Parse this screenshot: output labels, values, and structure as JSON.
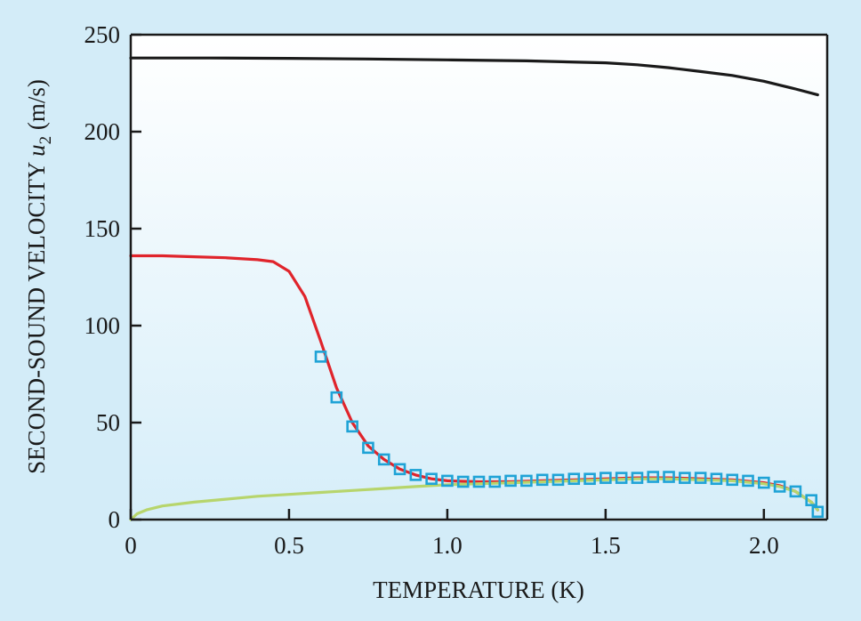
{
  "colors": {
    "background": "#d3ecf8",
    "plot_top": "#ffffff",
    "plot_bottom": "#d6eef9",
    "axis": "#1a1a1a",
    "black_curve": "#1a1a1a",
    "red_curve": "#e0242b",
    "green_curve": "#b7d56c",
    "marker": "#1fa3d6"
  },
  "chart_data": {
    "type": "line",
    "title": "",
    "xlabel": "TEMPERATURE (K)",
    "ylabel_prefix": "SECOND-SOUND VELOCITY ",
    "ylabel_symbol": "u",
    "ylabel_subscript": "2",
    "ylabel_suffix": " (m/s)",
    "xlim": [
      0,
      2.2
    ],
    "ylim": [
      0,
      250
    ],
    "x_ticks": [
      0,
      0.5,
      1.0,
      1.5,
      2.0
    ],
    "x_tick_labels": [
      "0",
      "0.5",
      "1.0",
      "1.5",
      "2.0"
    ],
    "y_ticks": [
      0,
      50,
      100,
      150,
      200,
      250
    ],
    "y_tick_labels": [
      "0",
      "50",
      "100",
      "150",
      "200",
      "250"
    ],
    "grid": false,
    "legend": "none",
    "series": [
      {
        "kind": "line",
        "color": "#1a1a1a",
        "x": [
          0,
          0.25,
          0.5,
          0.75,
          1.0,
          1.25,
          1.5,
          1.6,
          1.7,
          1.8,
          1.9,
          2.0,
          2.05,
          2.1,
          2.17
        ],
        "y": [
          238,
          238,
          237.8,
          237.5,
          237,
          236.5,
          235.5,
          234.5,
          233,
          231,
          229,
          226,
          224,
          222,
          219
        ]
      },
      {
        "kind": "line",
        "color": "#e0242b",
        "x": [
          0,
          0.1,
          0.2,
          0.3,
          0.4,
          0.45,
          0.5,
          0.55,
          0.6,
          0.65,
          0.7,
          0.75,
          0.8,
          0.85,
          0.9,
          0.95,
          1.0,
          1.1,
          1.2,
          1.3,
          1.4,
          1.5,
          1.6,
          1.7,
          1.8,
          1.9,
          2.0,
          2.05,
          2.1,
          2.15,
          2.17
        ],
        "y": [
          136,
          136,
          135.5,
          135,
          134,
          133,
          128,
          115,
          92,
          68,
          50,
          38,
          31,
          26,
          23,
          21,
          20,
          19.5,
          19.5,
          20,
          20.5,
          21,
          21.5,
          21.5,
          21,
          20.5,
          19,
          17.5,
          14.5,
          9,
          5
        ]
      },
      {
        "kind": "line",
        "color": "#b7d56c",
        "x": [
          0,
          0.02,
          0.05,
          0.1,
          0.2,
          0.3,
          0.4,
          0.5,
          0.6,
          0.7,
          0.8,
          0.9,
          1.0,
          1.1,
          1.2,
          1.3,
          1.4,
          1.5,
          1.6,
          1.7,
          1.8,
          1.9,
          2.0,
          2.05,
          2.1,
          2.15,
          2.17
        ],
        "y": [
          0,
          3,
          5,
          7,
          9,
          10.5,
          12,
          13,
          14,
          15,
          16,
          17,
          18,
          18.5,
          19,
          19.5,
          20,
          20.5,
          21,
          21,
          20.5,
          20,
          18.5,
          17,
          14.5,
          9,
          5
        ]
      },
      {
        "kind": "scatter",
        "marker": "square",
        "color": "#1fa3d6",
        "x": [
          0.6,
          0.65,
          0.7,
          0.75,
          0.8,
          0.85,
          0.9,
          0.95,
          1.0,
          1.05,
          1.1,
          1.15,
          1.2,
          1.25,
          1.3,
          1.35,
          1.4,
          1.45,
          1.5,
          1.55,
          1.6,
          1.65,
          1.7,
          1.75,
          1.8,
          1.85,
          1.9,
          1.95,
          2.0,
          2.05,
          2.1,
          2.15,
          2.17
        ],
        "y": [
          84,
          63,
          48,
          37,
          31,
          26,
          23,
          21,
          20,
          19.5,
          19.5,
          19.5,
          20,
          20,
          20.5,
          20.5,
          21,
          21,
          21.5,
          21.5,
          21.5,
          22,
          22,
          21.5,
          21.5,
          21,
          20.5,
          20,
          19,
          17,
          14.5,
          10,
          4
        ]
      }
    ]
  }
}
